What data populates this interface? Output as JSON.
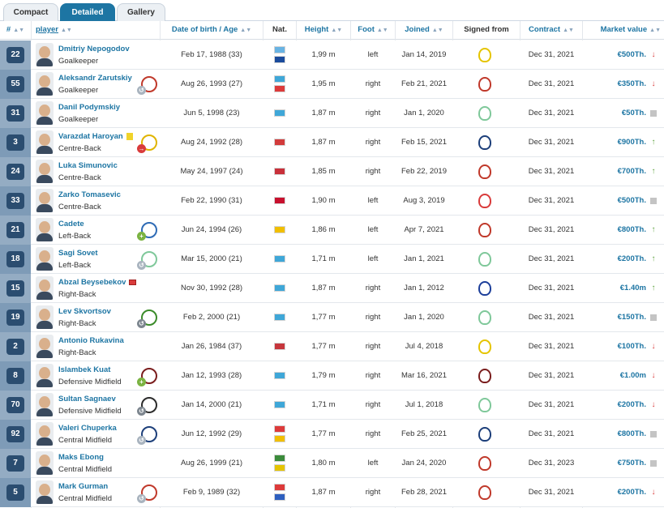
{
  "tabs": [
    {
      "label": "Compact",
      "active": false
    },
    {
      "label": "Detailed",
      "active": true
    },
    {
      "label": "Gallery",
      "active": false
    }
  ],
  "columns": {
    "num": "#",
    "player": "player",
    "dob": "Date of birth / Age",
    "nat": "Nat.",
    "height": "Height",
    "foot": "Foot",
    "joined": "Joined",
    "signed": "Signed from",
    "contract": "Contract",
    "value": "Market value"
  },
  "icons": {
    "sort": "sort-arrows-icon",
    "trend_up": "arrow-up-icon",
    "trend_down": "arrow-down-icon",
    "trend_flat": "square-icon"
  },
  "colors": {
    "brand": "#1d75a3",
    "number_badge": "#2b4d70",
    "up": "#62a544",
    "down": "#d93b3b",
    "flat": "#c4c4c4"
  },
  "players": [
    {
      "number": "22",
      "name": "Dmitriy Nepogodov",
      "position": "Goalkeeper",
      "dob": "Feb 17, 1988 (33)",
      "flags": [
        "#68b3e3",
        "#1a4b9c"
      ],
      "height": "1,99 m",
      "foot": "left",
      "joined": "Jan 14, 2019",
      "club_color": "#e5c400",
      "contract": "Dec 31, 2021",
      "value": "€500Th.",
      "trend": "down",
      "marker": "",
      "move": "",
      "cur_club": ""
    },
    {
      "number": "55",
      "name": "Aleksandr Zarutskiy",
      "position": "Goalkeeper",
      "dob": "Aug 26, 1993 (27)",
      "flags": [
        "#3fa7d8",
        "#dd3a3a"
      ],
      "height": "1,95 m",
      "foot": "right",
      "joined": "Feb 21, 2021",
      "club_color": "#c0392b",
      "contract": "Dec 31, 2021",
      "value": "€350Th.",
      "trend": "down",
      "marker": "",
      "move": "loan",
      "cur_club": "#c0392b"
    },
    {
      "number": "31",
      "name": "Danil Podymskiy",
      "position": "Goalkeeper",
      "dob": "Jun 5, 1998 (23)",
      "flags": [
        "#3fa7d8"
      ],
      "height": "1,87 m",
      "foot": "right",
      "joined": "Jan 1, 2020",
      "club_color": "#7fc89a",
      "contract": "Dec 31, 2021",
      "value": "€50Th.",
      "trend": "flat",
      "marker": "",
      "move": "",
      "cur_club": ""
    },
    {
      "number": "3",
      "name": "Varazdat Haroyan",
      "position": "Centre-Back",
      "dob": "Aug 24, 1992 (28)",
      "flags": [
        "#d23b3b"
      ],
      "height": "1,87 m",
      "foot": "right",
      "joined": "Feb 15, 2021",
      "club_color": "#1d3f7a",
      "contract": "Dec 31, 2021",
      "value": "€900Th.",
      "trend": "up",
      "marker": "yellow",
      "move": "out",
      "cur_club": "#e0b400"
    },
    {
      "number": "24",
      "name": "Luka Simunovic",
      "position": "Centre-Back",
      "dob": "May 24, 1997 (24)",
      "flags": [
        "#c9303a"
      ],
      "height": "1,85 m",
      "foot": "right",
      "joined": "Feb 22, 2019",
      "club_color": "#c0392b",
      "contract": "Dec 31, 2021",
      "value": "€700Th.",
      "trend": "up",
      "marker": "",
      "move": "",
      "cur_club": ""
    },
    {
      "number": "33",
      "name": "Zarko Tomasevic",
      "position": "Centre-Back",
      "dob": "Feb 22, 1990 (31)",
      "flags": [
        "#c8102e"
      ],
      "height": "1,90 m",
      "foot": "left",
      "joined": "Aug 3, 2019",
      "club_color": "#d93b3b",
      "contract": "Dec 31, 2021",
      "value": "€500Th.",
      "trend": "flat",
      "marker": "",
      "move": "",
      "cur_club": ""
    },
    {
      "number": "21",
      "name": "Cadete",
      "position": "Left-Back",
      "dob": "Jun 24, 1994 (26)",
      "flags": [
        "#f1bf00"
      ],
      "height": "1,86 m",
      "foot": "left",
      "joined": "Apr 7, 2021",
      "club_color": "#c0392b",
      "contract": "Dec 31, 2021",
      "value": "€800Th.",
      "trend": "up",
      "marker": "",
      "move": "in",
      "cur_club": "#2e6bb5"
    },
    {
      "number": "18",
      "name": "Sagi Sovet",
      "position": "Left-Back",
      "dob": "Mar 15, 2000 (21)",
      "flags": [
        "#3fa7d8"
      ],
      "height": "1,71 m",
      "foot": "left",
      "joined": "Jan 1, 2021",
      "club_color": "#7fc89a",
      "contract": "Dec 31, 2021",
      "value": "€200Th.",
      "trend": "up",
      "marker": "",
      "move": "loan",
      "cur_club": "#7fc89a"
    },
    {
      "number": "15",
      "name": "Abzal Beysebekov",
      "position": "Right-Back",
      "dob": "Nov 30, 1992 (28)",
      "flags": [
        "#3fa7d8"
      ],
      "height": "1,87 m",
      "foot": "right",
      "joined": "Jan 1, 2012",
      "club_color": "#1d3f9a",
      "contract": "Dec 31, 2021",
      "value": "€1.40m",
      "trend": "up",
      "marker": "red",
      "move": "",
      "cur_club": ""
    },
    {
      "number": "19",
      "name": "Lev Skvortsov",
      "position": "Right-Back",
      "dob": "Feb 2, 2000 (21)",
      "flags": [
        "#3fa7d8"
      ],
      "height": "1,77 m",
      "foot": "right",
      "joined": "Jan 1, 2020",
      "club_color": "#7fc89a",
      "contract": "Dec 31, 2021",
      "value": "€150Th.",
      "trend": "flat",
      "marker": "",
      "move": "back",
      "cur_club": "#3b8b2a"
    },
    {
      "number": "2",
      "name": "Antonio Rukavina",
      "position": "Right-Back",
      "dob": "Jan 26, 1984 (37)",
      "flags": [
        "#c6363c"
      ],
      "height": "1,77 m",
      "foot": "right",
      "joined": "Jul 4, 2018",
      "club_color": "#e5c400",
      "contract": "Dec 31, 2021",
      "value": "€100Th.",
      "trend": "down",
      "marker": "",
      "move": "",
      "cur_club": ""
    },
    {
      "number": "8",
      "name": "Islambek Kuat",
      "position": "Defensive Midfield",
      "dob": "Jan 12, 1993 (28)",
      "flags": [
        "#3fa7d8"
      ],
      "height": "1,79 m",
      "foot": "right",
      "joined": "Mar 16, 2021",
      "club_color": "#7a1d1d",
      "contract": "Dec 31, 2021",
      "value": "€1.00m",
      "trend": "down",
      "marker": "",
      "move": "in",
      "cur_club": "#7a1d1d"
    },
    {
      "number": "70",
      "name": "Sultan Sagnaev",
      "position": "Defensive Midfield",
      "dob": "Jan 14, 2000 (21)",
      "flags": [
        "#3fa7d8"
      ],
      "height": "1,71 m",
      "foot": "right",
      "joined": "Jul 1, 2018",
      "club_color": "#7fc89a",
      "contract": "Dec 31, 2021",
      "value": "€200Th.",
      "trend": "down",
      "marker": "",
      "move": "back",
      "cur_club": "#2b2b2b"
    },
    {
      "number": "92",
      "name": "Valeri Chuperka",
      "position": "Central Midfield",
      "dob": "Jun 12, 1992 (29)",
      "flags": [
        "#dd3a3a",
        "#f1bf00"
      ],
      "height": "1,77 m",
      "foot": "right",
      "joined": "Feb 25, 2021",
      "club_color": "#1d3f7a",
      "contract": "Dec 31, 2021",
      "value": "€800Th.",
      "trend": "flat",
      "marker": "",
      "move": "loan",
      "cur_club": "#1d3f7a"
    },
    {
      "number": "7",
      "name": "Maks Ebong",
      "position": "Central Midfield",
      "dob": "Aug 26, 1999 (21)",
      "flags": [
        "#3b8b3b",
        "#e5c400"
      ],
      "height": "1,80 m",
      "foot": "left",
      "joined": "Jan 24, 2020",
      "club_color": "#c0392b",
      "contract": "Dec 31, 2023",
      "value": "€750Th.",
      "trend": "flat",
      "marker": "",
      "move": "",
      "cur_club": ""
    },
    {
      "number": "5",
      "name": "Mark Gurman",
      "position": "Central Midfield",
      "dob": "Feb 9, 1989 (32)",
      "flags": [
        "#dd3a3a",
        "#2e5fbf"
      ],
      "height": "1,87 m",
      "foot": "right",
      "joined": "Feb 28, 2021",
      "club_color": "#c0392b",
      "contract": "Dec 31, 2021",
      "value": "€200Th.",
      "trend": "down",
      "marker": "",
      "move": "loan",
      "cur_club": "#c0392b"
    }
  ]
}
